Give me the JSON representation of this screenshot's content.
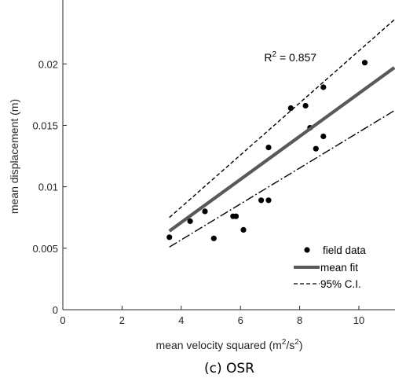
{
  "chart_data": {
    "type": "scatter",
    "title": "",
    "caption": "(c) OSR",
    "xlabel": "mean velocity squared (m",
    "xlabel_sup1": "2",
    "xlabel_mid": "/s",
    "xlabel_sup2": "2",
    "xlabel_end": ")",
    "ylabel": "mean displacement (m)",
    "xlim": [
      0,
      11.2
    ],
    "ylim": [
      0,
      0.0237
    ],
    "xticks": [
      "0",
      "2",
      "4",
      "6",
      "8",
      "10"
    ],
    "xtick_values": [
      0,
      2,
      4,
      6,
      8,
      10
    ],
    "yticks": [
      "0",
      "0.005",
      "0.01",
      "0.015",
      "0.02"
    ],
    "ytick_values": [
      0,
      0.005,
      0.01,
      0.015,
      0.02
    ],
    "grid": false,
    "legend_position": "bottom-right",
    "annotation": {
      "prefix": "R",
      "sup": "2",
      "suffix": " = 0.857",
      "x": 6.8,
      "y": 0.0202
    },
    "series": [
      {
        "name": "field data",
        "kind": "points",
        "color": "#000000",
        "x": [
          3.6,
          4.3,
          4.8,
          5.1,
          5.75,
          5.85,
          6.1,
          6.7,
          6.95,
          6.95,
          7.7,
          8.2,
          8.35,
          8.55,
          8.8,
          8.8,
          10.2
        ],
        "y": [
          0.0059,
          0.0072,
          0.008,
          0.0058,
          0.0076,
          0.0076,
          0.0065,
          0.0089,
          0.0089,
          0.0132,
          0.0164,
          0.0166,
          0.0148,
          0.0131,
          0.0181,
          0.0141,
          0.0201
        ]
      },
      {
        "name": "mean fit",
        "kind": "line",
        "color": "#595959",
        "x": [
          3.6,
          11.2
        ],
        "y": [
          0.0064,
          0.0197
        ]
      },
      {
        "name": "95% C.I.",
        "kind": "dashed",
        "color": "#000000",
        "x": [
          3.6,
          11.2
        ],
        "y": [
          0.0075,
          0.0236
        ]
      },
      {
        "name": "95% C.I. lower",
        "kind": "dashdot",
        "color": "#000000",
        "x": [
          3.6,
          11.2
        ],
        "y": [
          0.0051,
          0.0162
        ]
      }
    ]
  }
}
